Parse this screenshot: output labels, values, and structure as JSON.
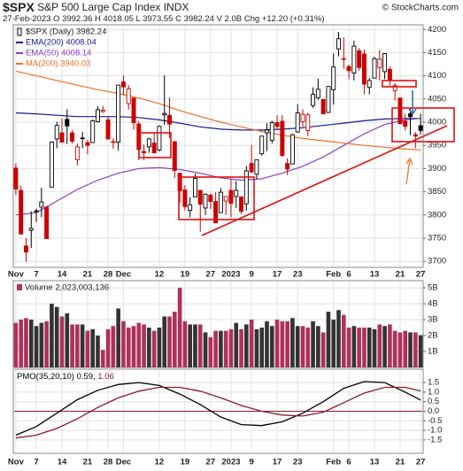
{
  "header": {
    "symbol": "$SPX",
    "name": "S&P 500 Large Cap Index",
    "exchange": "INDX",
    "copyright": "© StockCharts.com",
    "date": "27-Feb-2023",
    "quote": "O 3992.36 H 4018.05 L 3973.55 C 3982.24 V 2.0B",
    "change": "Chg +12.20 (+0.31%)"
  },
  "chart_data": [
    {
      "type": "candlestick",
      "legend": "$SPX (Daily) 3982.24",
      "grid": true,
      "up_color": "#000000",
      "down_color": "#cc0000",
      "categories": [
        "Nov",
        null,
        null,
        null,
        "7",
        null,
        null,
        null,
        null,
        "14",
        null,
        null,
        null,
        null,
        "21",
        null,
        null,
        null,
        "28",
        null,
        null,
        "Dec",
        null,
        null,
        null,
        null,
        null,
        null,
        "12",
        null,
        null,
        null,
        null,
        "19",
        null,
        null,
        null,
        null,
        "27",
        null,
        null,
        null,
        "2023",
        null,
        null,
        null,
        "9",
        null,
        null,
        null,
        null,
        "17",
        null,
        null,
        null,
        "23",
        null,
        null,
        null,
        null,
        null,
        null,
        "Feb",
        null,
        null,
        "6",
        null,
        null,
        null,
        null,
        "13",
        null,
        null,
        null,
        null,
        "21",
        null,
        null,
        null,
        "27"
      ],
      "open": [
        3901,
        3853,
        3733,
        3767,
        3809,
        3817,
        3817,
        3860,
        3964,
        3977,
        4006,
        3977,
        3919,
        3966,
        3956,
        3956,
        4001,
        4023,
        4005,
        3957,
        3957,
        4087,
        4040,
        4052,
        3996,
        3937,
        3947,
        3955,
        3940,
        4016,
        4015,
        3958,
        3890,
        3854,
        3810,
        3839,
        3853,
        3815,
        3843,
        3829,
        3805,
        3830,
        3853,
        3840,
        3839,
        3824,
        3911,
        3888,
        3932,
        3977,
        3961,
        3999,
        4002,
        3911,
        3910,
        3979,
        4001,
        3982,
        4036,
        4053,
        4049,
        4021,
        4070,
        4158,
        4137,
        4120,
        4106,
        4154,
        4147,
        4075,
        4095,
        4118,
        4109,
        4114,
        4068,
        4052,
        4002,
        4018,
        3973,
        3992.36
      ],
      "high": [
        3911,
        3863,
        3750,
        3808,
        3814,
        3859,
        3818,
        3959,
        4001,
        4008,
        4028,
        3983,
        3954,
        3979,
        3962,
        4006,
        4034,
        4035,
        4012,
        3965,
        4080,
        4101,
        4080,
        4052,
        4002,
        3952,
        3966,
        3977,
        3993,
        4101,
        4053,
        3958,
        3890,
        3864,
        3838,
        3889,
        3853,
        3846,
        3846,
        3849,
        3858,
        3840,
        3878,
        3873,
        3839,
        3906,
        3951,
        3919,
        3970,
        3998,
        4003,
        4015,
        4015,
        3922,
        3975,
        4039,
        4028,
        4020,
        4075,
        4094,
        4050,
        4077,
        4148,
        4195,
        4183,
        4124,
        4176,
        4160,
        4157,
        4095,
        4141,
        4156,
        4149,
        4120,
        4084,
        4052,
        4018,
        4029,
        3979,
        4018.05
      ],
      "low": [
        3843,
        3758,
        3699,
        3729,
        3785,
        3795,
        3748,
        3860,
        3944,
        3956,
        3953,
        3954,
        3907,
        3944,
        3931,
        3956,
        3999,
        4020,
        3962,
        3943,
        3939,
        4058,
        4027,
        3984,
        3918,
        3918,
        3934,
        3933,
        3937,
        3994,
        3966,
        3880,
        3827,
        3810,
        3795,
        3839,
        3764,
        3800,
        3813,
        3783,
        3805,
        3800,
        3795,
        3815,
        3802,
        3809,
        3890,
        3877,
        3928,
        3938,
        3954,
        3984,
        3926,
        3886,
        3910,
        3977,
        3990,
        3969,
        4031,
        4048,
        4018,
        4021,
        4038,
        4142,
        4115,
        4093,
        4090,
        4111,
        4060,
        4060,
        4095,
        4090,
        4093,
        4079,
        4047,
        3995,
        3982,
        3972,
        3944,
        3973.55
      ],
      "close": [
        3856,
        3759,
        3720,
        3771,
        3807,
        3828,
        3749,
        3957,
        3993,
        3957,
        3992,
        3959,
        3947,
        3965,
        3950,
        4003,
        4027,
        4026,
        3964,
        3958,
        4080,
        4076,
        4072,
        3999,
        3941,
        3934,
        3964,
        3934,
        3991,
        4019,
        3996,
        3896,
        3852,
        3818,
        3822,
        3879,
        3823,
        3845,
        3829,
        3783,
        3849,
        3840,
        3825,
        3853,
        3808,
        3895,
        3893,
        3919,
        3970,
        3983,
        3999,
        3991,
        3928,
        3899,
        3973,
        4020,
        4017,
        4016,
        4060,
        4071,
        4018,
        4077,
        4119,
        4180,
        4136,
        4111,
        4164,
        4118,
        4082,
        4090,
        4137,
        4136,
        4148,
        4090,
        4079,
        3997,
        3991,
        4012,
        3970,
        3982.24
      ],
      "ylim": [
        3687,
        4210
      ],
      "yticks": [
        3700,
        3750,
        3800,
        3850,
        3900,
        3950,
        4000,
        4050,
        4100,
        4150,
        4200
      ],
      "overlays": [
        {
          "name": "EMA(200) 4008.04",
          "color": "#1a1a8c",
          "x": [
            0,
            4,
            8,
            12,
            16,
            20,
            24,
            28,
            32,
            36,
            40,
            44,
            48,
            52,
            56,
            60,
            64,
            68,
            72,
            76,
            79
          ],
          "values": [
            4020,
            4018,
            4015,
            4012,
            4012,
            4012,
            4010,
            4005,
            3998,
            3990,
            3985,
            3983,
            3983,
            3985,
            3988,
            3993,
            3998,
            4003,
            4007,
            4008,
            4008.04
          ]
        },
        {
          "name": "EMA(50) 4008.14",
          "color": "#8a3fc4",
          "x": [
            0,
            4,
            8,
            12,
            16,
            20,
            24,
            28,
            32,
            36,
            40,
            44,
            48,
            52,
            56,
            60,
            64,
            68,
            72,
            76,
            79
          ],
          "values": [
            3800,
            3805,
            3830,
            3855,
            3875,
            3890,
            3900,
            3902,
            3898,
            3890,
            3880,
            3875,
            3878,
            3890,
            3905,
            3925,
            3950,
            3975,
            3995,
            4005,
            4008.14
          ]
        },
        {
          "name": "MA(200) 3940.03",
          "color": "#e8732a",
          "x": [
            0,
            4,
            8,
            12,
            16,
            20,
            24,
            28,
            32,
            36,
            40,
            44,
            48,
            52,
            56,
            60,
            64,
            68,
            72,
            76,
            79
          ],
          "values": [
            4110,
            4100,
            4090,
            4080,
            4070,
            4062,
            4052,
            4040,
            4025,
            4012,
            4000,
            3990,
            3980,
            3972,
            3965,
            3960,
            3955,
            3950,
            3946,
            3942,
            3940.03
          ]
        }
      ]
    },
    {
      "type": "bar",
      "legend": "Volume 2,023,003,136",
      "grid": true,
      "up_color": "#333333",
      "down_color": "#b0305c",
      "values": [
        2.8,
        3.0,
        3.1,
        3.0,
        2.6,
        2.8,
        2.9,
        4.0,
        3.8,
        3.2,
        3.4,
        2.7,
        2.7,
        2.7,
        2.3,
        2.4,
        2.0,
        1.1,
        2.4,
        2.6,
        3.7,
        2.9,
        2.5,
        2.6,
        2.8,
        2.7,
        2.5,
        2.3,
        2.5,
        3.2,
        3.2,
        3.5,
        5.0,
        2.9,
        2.7,
        2.7,
        2.7,
        2.2,
        1.9,
        2.3,
        2.3,
        2.3,
        2.4,
        2.8,
        2.4,
        2.7,
        3.0,
        2.4,
        2.5,
        2.9,
        2.6,
        3.0,
        2.9,
        2.9,
        3.1,
        2.6,
        2.6,
        2.5,
        2.9,
        2.6,
        2.2,
        3.5,
        3.0,
        3.6,
        3.3,
        2.5,
        2.6,
        2.5,
        2.5,
        2.5,
        2.4,
        2.7,
        2.6,
        2.7,
        2.3,
        2.2,
        2.3,
        2.2,
        2.2,
        2.023003136
      ],
      "ylim": [
        0,
        5.45
      ],
      "yticks": [
        {
          "value": 1,
          "label": "1B"
        },
        {
          "value": 2,
          "label": "2B"
        },
        {
          "value": 3,
          "label": "3B"
        },
        {
          "value": 4,
          "label": "4B"
        },
        {
          "value": 5,
          "label": "5B"
        }
      ]
    },
    {
      "type": "line",
      "legend": "PMO(35,20,10)",
      "grid": true,
      "zero_line_color": "#8b1a2b",
      "series": [
        {
          "name": "0.59,",
          "color": "#000000",
          "x": [
            0,
            4,
            8,
            12,
            16,
            20,
            24,
            28,
            32,
            36,
            40,
            44,
            48,
            52,
            56,
            60,
            64,
            68,
            72,
            76,
            79
          ],
          "values": [
            -1.25,
            -0.8,
            -0.1,
            0.6,
            1.1,
            1.4,
            1.5,
            1.35,
            0.9,
            0.35,
            -0.3,
            -0.7,
            -0.75,
            -0.55,
            -0.1,
            0.5,
            1.2,
            1.55,
            1.5,
            1.0,
            0.59
          ]
        },
        {
          "name": "1.06",
          "color": "#8b1a2b",
          "x": [
            0,
            4,
            8,
            12,
            16,
            20,
            24,
            28,
            32,
            36,
            40,
            44,
            48,
            52,
            56,
            60,
            64,
            68,
            72,
            76,
            79
          ],
          "values": [
            -1.4,
            -1.25,
            -0.9,
            -0.4,
            0.2,
            0.7,
            1.05,
            1.25,
            1.25,
            1.05,
            0.7,
            0.3,
            0.0,
            -0.2,
            -0.25,
            -0.05,
            0.45,
            0.95,
            1.25,
            1.25,
            1.06
          ]
        }
      ],
      "ylim": [
        -2.2,
        2.2
      ],
      "yticks": [
        1.5,
        {
          "value": 1,
          "label": "1.0"
        },
        0.5,
        {
          "value": 0,
          "label": "0.0"
        },
        -0.5,
        {
          "value": -1,
          "label": "-1.0"
        },
        -1.5
      ]
    }
  ]
}
